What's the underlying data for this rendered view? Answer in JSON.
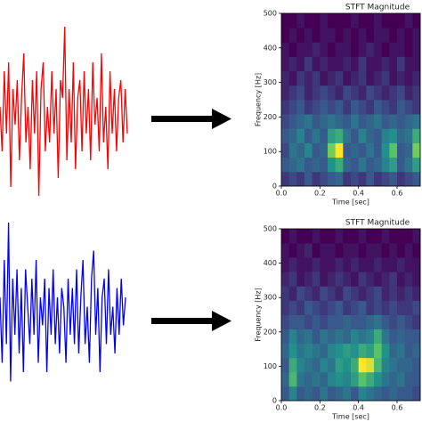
{
  "chart_data": [
    {
      "type": "line",
      "color": "#ff0000",
      "ylim": [
        -1,
        1
      ],
      "values": [
        0.1,
        -0.4,
        0.5,
        -0.2,
        0.6,
        -0.8,
        0.3,
        -0.1,
        0.4,
        -0.5,
        0.2,
        0.7,
        -0.3,
        0.1,
        -0.6,
        0.4,
        -0.2,
        0.5,
        -0.9,
        0.3,
        0.6,
        -0.4,
        0.1,
        -0.3,
        0.5,
        -0.2,
        0.3,
        -0.7,
        0.4,
        0.2,
        1.0,
        -0.5,
        0.3,
        -0.3,
        0.6,
        -0.6,
        0.2,
        0.4,
        -0.4,
        0.5,
        -0.2,
        0.3,
        -0.5,
        0.6,
        -0.1,
        0.2,
        -0.4,
        0.7,
        -0.3,
        0.1,
        -0.6,
        0.5,
        -0.2,
        0.3,
        -0.4,
        0.2,
        0.4,
        -0.3,
        0.3,
        -0.2
      ]
    },
    {
      "type": "heatmap",
      "title": "STFT Magnitude",
      "xlabel": "Time [sec]",
      "ylabel": "Frequency [Hz]",
      "xlim": [
        0,
        0.72
      ],
      "ylim": [
        0,
        500
      ],
      "xticks": [
        {
          "value": 0,
          "label": "0.0"
        },
        0.2,
        0.4,
        0.6
      ],
      "yticks": [
        0,
        100,
        200,
        300,
        400,
        500
      ],
      "colormap": "viridis",
      "z": [
        [
          0.2,
          0.25,
          0.2,
          0.3,
          0.2,
          0.25,
          0.3,
          0.35,
          0.2,
          0.25,
          0.2,
          0.3,
          0.2,
          0.25,
          0.3,
          0.2,
          0.25,
          0.3
        ],
        [
          0.3,
          0.35,
          0.4,
          0.3,
          0.35,
          0.3,
          0.5,
          0.6,
          0.35,
          0.3,
          0.4,
          0.3,
          0.35,
          0.45,
          0.55,
          0.3,
          0.4,
          0.55
        ],
        [
          0.25,
          0.4,
          0.35,
          0.45,
          0.3,
          0.35,
          0.75,
          0.95,
          0.3,
          0.35,
          0.3,
          0.4,
          0.3,
          0.5,
          0.7,
          0.3,
          0.35,
          0.75
        ],
        [
          0.3,
          0.35,
          0.45,
          0.3,
          0.4,
          0.3,
          0.55,
          0.6,
          0.4,
          0.3,
          0.45,
          0.35,
          0.3,
          0.45,
          0.5,
          0.35,
          0.4,
          0.6
        ],
        [
          0.25,
          0.3,
          0.35,
          0.4,
          0.3,
          0.35,
          0.4,
          0.35,
          0.3,
          0.4,
          0.3,
          0.35,
          0.4,
          0.3,
          0.35,
          0.3,
          0.35,
          0.4
        ],
        [
          0.2,
          0.25,
          0.3,
          0.2,
          0.25,
          0.3,
          0.25,
          0.3,
          0.2,
          0.3,
          0.25,
          0.2,
          0.3,
          0.25,
          0.2,
          0.3,
          0.25,
          0.2
        ],
        [
          0.15,
          0.2,
          0.25,
          0.15,
          0.2,
          0.25,
          0.2,
          0.15,
          0.25,
          0.2,
          0.15,
          0.25,
          0.2,
          0.15,
          0.2,
          0.25,
          0.15,
          0.2
        ],
        [
          0.15,
          0.1,
          0.2,
          0.15,
          0.2,
          0.1,
          0.15,
          0.2,
          0.1,
          0.15,
          0.2,
          0.1,
          0.15,
          0.2,
          0.1,
          0.15,
          0.1,
          0.15
        ],
        [
          0.1,
          0.15,
          0.1,
          0.2,
          0.1,
          0.15,
          0.1,
          0.1,
          0.15,
          0.1,
          0.2,
          0.1,
          0.1,
          0.15,
          0.1,
          0.2,
          0.1,
          0.1
        ],
        [
          0.1,
          0.05,
          0.1,
          0.1,
          0.15,
          0.1,
          0.05,
          0.1,
          0.1,
          0.05,
          0.1,
          0.15,
          0.1,
          0.05,
          0.1,
          0.1,
          0.05,
          0.1
        ],
        [
          0.05,
          0.1,
          0.05,
          0.1,
          0.05,
          0.1,
          0.1,
          0.05,
          0.1,
          0.05,
          0.1,
          0.05,
          0.1,
          0.1,
          0.05,
          0.1,
          0.05,
          0.1
        ],
        [
          0.05,
          0.05,
          0.1,
          0.05,
          0.05,
          0.1,
          0.05,
          0.05,
          0.05,
          0.1,
          0.05,
          0.05,
          0.1,
          0.05,
          0.05,
          0.05,
          0.1,
          0.05
        ]
      ]
    },
    {
      "type": "line",
      "color": "#0000ff",
      "ylim": [
        -1,
        1
      ],
      "values": [
        0.2,
        -0.5,
        0.6,
        -0.3,
        1.0,
        -0.7,
        0.4,
        -0.2,
        0.5,
        -0.4,
        0.3,
        -0.6,
        0.5,
        0.1,
        -0.3,
        0.4,
        -0.2,
        0.6,
        -0.5,
        0.2,
        -0.1,
        0.4,
        -0.6,
        0.3,
        -0.2,
        0.5,
        -0.3,
        0.2,
        -0.4,
        0.3,
        0.1,
        -0.5,
        0.4,
        -0.2,
        0.3,
        -0.3,
        0.5,
        -0.4,
        0.2,
        0.6,
        -0.3,
        0.1,
        -0.5,
        0.4,
        0.7,
        -0.2,
        0.3,
        -0.6,
        0.2,
        0.4,
        -0.3,
        0.5,
        -0.2,
        0.1,
        -0.4,
        0.3,
        -0.2,
        0.4,
        -0.1,
        0.2
      ]
    },
    {
      "type": "heatmap",
      "title": "STFT Magnitude",
      "xlabel": "Time [sec]",
      "ylabel": "Frequency [Hz]",
      "xlim": [
        0,
        0.72
      ],
      "ylim": [
        0,
        500
      ],
      "xticks": [
        {
          "value": 0,
          "label": "0.0"
        },
        0.2,
        0.4,
        0.6
      ],
      "yticks": [
        0,
        100,
        200,
        300,
        400,
        500
      ],
      "colormap": "viridis",
      "z": [
        [
          0.3,
          0.45,
          0.3,
          0.35,
          0.3,
          0.4,
          0.3,
          0.35,
          0.4,
          0.3,
          0.45,
          0.4,
          0.35,
          0.3,
          0.35,
          0.3,
          0.3,
          0.25
        ],
        [
          0.35,
          0.65,
          0.4,
          0.35,
          0.4,
          0.35,
          0.45,
          0.5,
          0.45,
          0.55,
          0.7,
          0.6,
          0.5,
          0.4,
          0.35,
          0.4,
          0.3,
          0.3
        ],
        [
          0.3,
          0.6,
          0.45,
          0.4,
          0.35,
          0.45,
          0.4,
          0.55,
          0.5,
          0.6,
          0.95,
          0.9,
          0.65,
          0.45,
          0.4,
          0.35,
          0.35,
          0.3
        ],
        [
          0.35,
          0.5,
          0.4,
          0.45,
          0.4,
          0.35,
          0.45,
          0.5,
          0.55,
          0.5,
          0.6,
          0.55,
          0.7,
          0.5,
          0.35,
          0.4,
          0.3,
          0.35
        ],
        [
          0.3,
          0.45,
          0.35,
          0.4,
          0.3,
          0.4,
          0.35,
          0.4,
          0.35,
          0.45,
          0.4,
          0.45,
          0.6,
          0.4,
          0.3,
          0.35,
          0.3,
          0.3
        ],
        [
          0.25,
          0.3,
          0.3,
          0.25,
          0.3,
          0.25,
          0.3,
          0.3,
          0.35,
          0.3,
          0.3,
          0.35,
          0.4,
          0.3,
          0.25,
          0.3,
          0.25,
          0.2
        ],
        [
          0.2,
          0.25,
          0.2,
          0.3,
          0.25,
          0.2,
          0.25,
          0.3,
          0.2,
          0.25,
          0.3,
          0.2,
          0.25,
          0.2,
          0.25,
          0.2,
          0.2,
          0.25
        ],
        [
          0.2,
          0.15,
          0.25,
          0.2,
          0.15,
          0.25,
          0.2,
          0.15,
          0.25,
          0.2,
          0.15,
          0.2,
          0.25,
          0.15,
          0.2,
          0.15,
          0.2,
          0.15
        ],
        [
          0.15,
          0.2,
          0.1,
          0.15,
          0.2,
          0.1,
          0.15,
          0.2,
          0.15,
          0.1,
          0.2,
          0.15,
          0.1,
          0.15,
          0.2,
          0.1,
          0.15,
          0.1
        ],
        [
          0.1,
          0.15,
          0.1,
          0.1,
          0.15,
          0.1,
          0.1,
          0.15,
          0.1,
          0.15,
          0.1,
          0.1,
          0.15,
          0.1,
          0.1,
          0.15,
          0.1,
          0.1
        ],
        [
          0.1,
          0.05,
          0.1,
          0.15,
          0.05,
          0.1,
          0.1,
          0.05,
          0.1,
          0.1,
          0.05,
          0.1,
          0.1,
          0.05,
          0.1,
          0.05,
          0.1,
          0.05
        ],
        [
          0.05,
          0.1,
          0.05,
          0.05,
          0.1,
          0.05,
          0.05,
          0.1,
          0.05,
          0.05,
          0.1,
          0.05,
          0.05,
          0.1,
          0.05,
          0.05,
          0.05,
          0.1
        ]
      ]
    }
  ]
}
